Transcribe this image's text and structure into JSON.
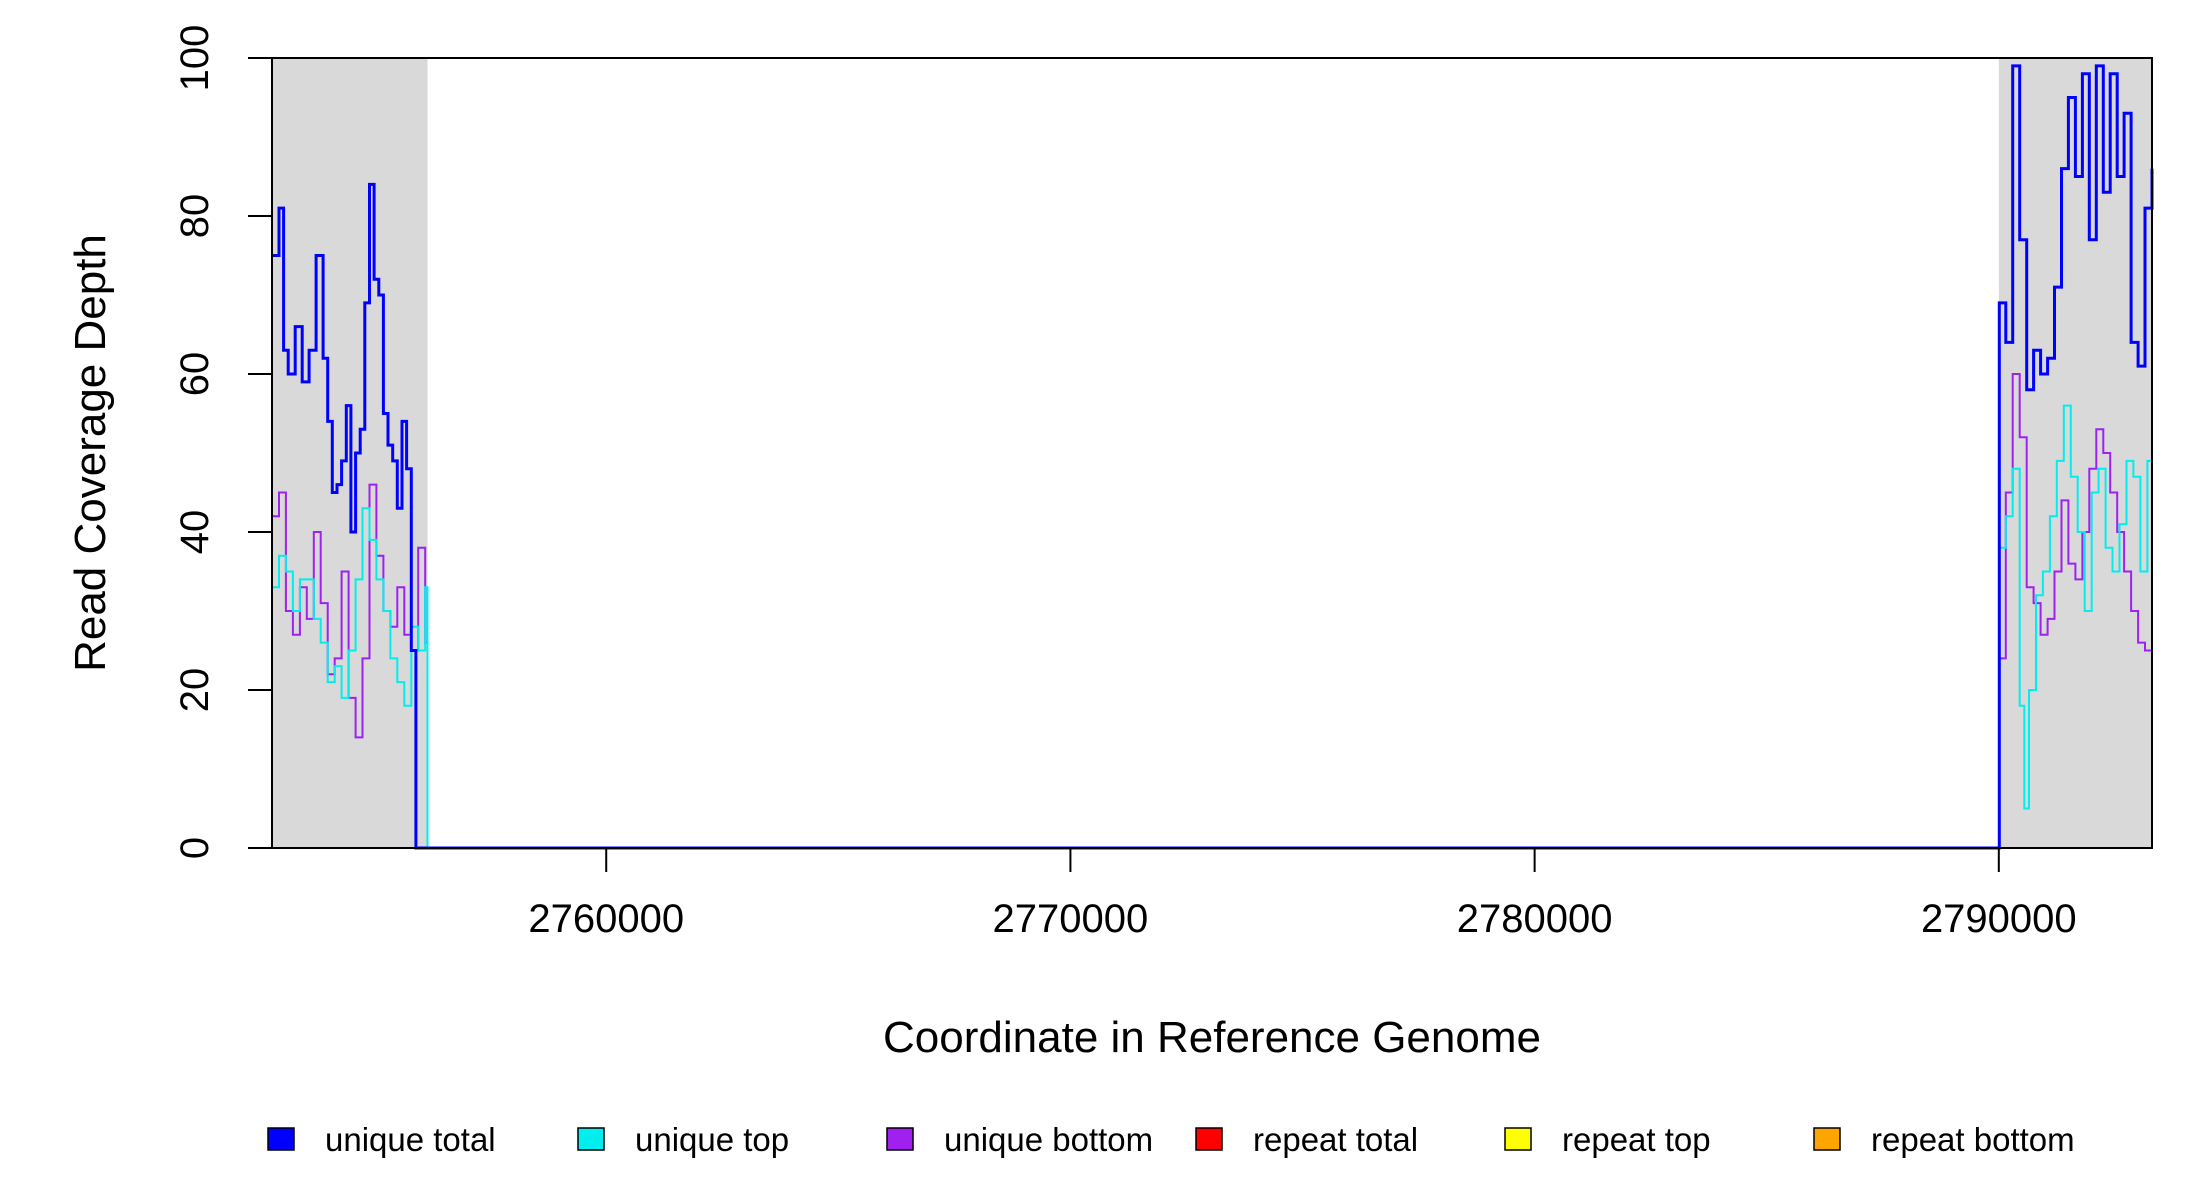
{
  "chart_data": {
    "type": "line",
    "title": "",
    "xlabel": "Coordinate in Reference Genome",
    "ylabel": "Read Coverage Depth",
    "xlim": [
      2752800,
      2793300
    ],
    "ylim": [
      0,
      100
    ],
    "x_ticks": [
      2760000,
      2770000,
      2780000,
      2790000
    ],
    "x_tick_labels": [
      "2760000",
      "2770000",
      "2780000",
      "2790000"
    ],
    "y_ticks": [
      0,
      20,
      40,
      60,
      80,
      100
    ],
    "y_tick_labels": [
      "0",
      "20",
      "40",
      "60",
      "80",
      "100"
    ],
    "grid": false,
    "legend_position": "bottom",
    "highlight_regions": [
      {
        "x0": 2752800,
        "x1": 2756150,
        "color": "#d9d9d9"
      },
      {
        "x0": 2790000,
        "x1": 2793300,
        "color": "#d9d9d9"
      }
    ],
    "series": [
      {
        "name": "unique total",
        "color": "#0000ff",
        "width": 3,
        "x": [
          2752800,
          2752950,
          2753050,
          2753150,
          2753300,
          2753450,
          2753600,
          2753750,
          2753900,
          2754000,
          2754100,
          2754200,
          2754300,
          2754400,
          2754500,
          2754600,
          2754700,
          2754800,
          2754900,
          2755000,
          2755100,
          2755200,
          2755300,
          2755400,
          2755500,
          2755600,
          2755700,
          2755800,
          2755900,
          2756000,
          2756080,
          2756150,
          2756160,
          2790000,
          2790010,
          2790150,
          2790300,
          2790450,
          2790600,
          2790750,
          2790900,
          2791050,
          2791200,
          2791350,
          2791500,
          2791650,
          2791800,
          2791950,
          2792100,
          2792250,
          2792400,
          2792550,
          2792700,
          2792850,
          2793000,
          2793150,
          2793300
        ],
        "values": [
          75,
          81,
          63,
          60,
          66,
          59,
          63,
          75,
          62,
          54,
          45,
          46,
          49,
          56,
          40,
          50,
          53,
          69,
          84,
          72,
          70,
          55,
          51,
          49,
          43,
          54,
          48,
          25,
          0,
          0,
          0,
          0,
          0,
          0,
          69,
          64,
          99,
          77,
          58,
          63,
          60,
          62,
          71,
          86,
          95,
          85,
          98,
          77,
          99,
          83,
          98,
          85,
          93,
          64,
          61,
          81,
          86
        ]
      },
      {
        "name": "unique top",
        "color": "#00eeee",
        "width": 2,
        "x": [
          2752800,
          2752950,
          2753100,
          2753250,
          2753400,
          2753550,
          2753700,
          2753850,
          2754000,
          2754150,
          2754300,
          2754450,
          2754600,
          2754750,
          2754900,
          2755050,
          2755200,
          2755350,
          2755500,
          2755650,
          2755800,
          2755950,
          2756100,
          2756150,
          2756160,
          2790000,
          2790010,
          2790150,
          2790300,
          2790450,
          2790550,
          2790650,
          2790800,
          2790950,
          2791100,
          2791250,
          2791400,
          2791550,
          2791700,
          2791850,
          2792000,
          2792150,
          2792300,
          2792450,
          2792600,
          2792750,
          2792900,
          2793050,
          2793200,
          2793300
        ],
        "values": [
          33,
          37,
          35,
          30,
          34,
          34,
          29,
          26,
          21,
          23,
          19,
          25,
          34,
          43,
          39,
          34,
          30,
          24,
          21,
          18,
          28,
          25,
          33,
          0,
          0,
          0,
          38,
          42,
          48,
          18,
          5,
          20,
          32,
          35,
          42,
          49,
          56,
          47,
          40,
          30,
          45,
          48,
          38,
          35,
          41,
          49,
          47,
          35,
          49,
          46
        ]
      },
      {
        "name": "unique bottom",
        "color": "#a020f0",
        "width": 2,
        "x": [
          2752800,
          2752950,
          2753100,
          2753250,
          2753400,
          2753550,
          2753700,
          2753850,
          2754000,
          2754150,
          2754300,
          2754450,
          2754600,
          2754750,
          2754900,
          2755050,
          2755200,
          2755350,
          2755500,
          2755650,
          2755800,
          2755950,
          2756100,
          2756150,
          2756160,
          2790000,
          2790010,
          2790150,
          2790300,
          2790450,
          2790600,
          2790750,
          2790900,
          2791050,
          2791200,
          2791350,
          2791500,
          2791650,
          2791800,
          2791950,
          2792100,
          2792250,
          2792400,
          2792550,
          2792700,
          2792850,
          2793000,
          2793150,
          2793300
        ],
        "values": [
          42,
          45,
          30,
          27,
          33,
          29,
          40,
          31,
          22,
          24,
          35,
          19,
          14,
          24,
          46,
          37,
          30,
          28,
          33,
          27,
          25,
          38,
          26,
          0,
          0,
          0,
          24,
          45,
          60,
          52,
          33,
          31,
          27,
          29,
          35,
          44,
          36,
          34,
          40,
          48,
          53,
          50,
          45,
          40,
          35,
          30,
          26,
          25,
          35
        ]
      },
      {
        "name": "repeat total",
        "color": "#ff0000",
        "width": 2,
        "x": [
          2752800,
          2793300
        ],
        "values": [
          0,
          0
        ]
      },
      {
        "name": "repeat top",
        "color": "#ffff00",
        "width": 2,
        "x": [
          2752800,
          2793300
        ],
        "values": [
          0,
          0
        ]
      },
      {
        "name": "repeat bottom",
        "color": "#ffa500",
        "width": 2,
        "x": [
          2752800,
          2793300
        ],
        "values": [
          0,
          0
        ]
      }
    ]
  }
}
